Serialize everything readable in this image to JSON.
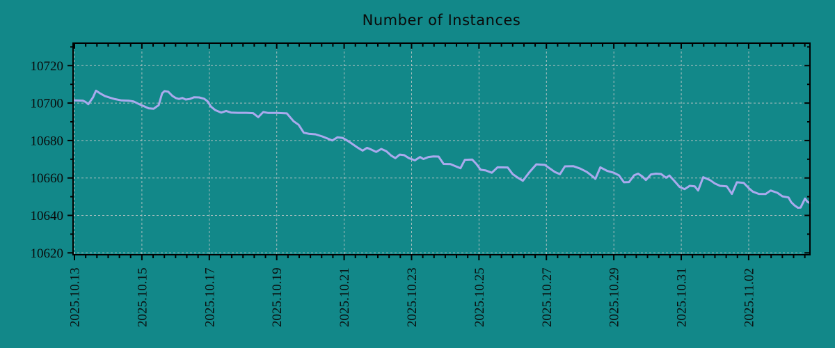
{
  "chart_data": {
    "type": "line",
    "title": "Number of Instances",
    "legend": "none",
    "grid": "dashed",
    "colors": {
      "background": "#128889",
      "line": "#aaaaee",
      "grid": "#c9c9c9",
      "axis": "#000000",
      "text": "#0a0a0a"
    },
    "x_axis": {
      "label": "",
      "tick_labels": [
        "2025.10.13",
        "2025.10.15",
        "2025.10.17",
        "2025.10.19",
        "2025.10.21",
        "2025.10.23",
        "2025.10.25",
        "2025.10.27",
        "2025.10.29",
        "2025.10.31",
        "2025.11.02"
      ],
      "tick_days": [
        0,
        2,
        4,
        6,
        8,
        10,
        12,
        14,
        16,
        18,
        20
      ],
      "minor_tick_interval_days": 0.3333,
      "range_days": [
        0,
        21.82
      ]
    },
    "y_axis": {
      "label": "",
      "tick_labels": [
        "10620",
        "10640",
        "10660",
        "10680",
        "10700",
        "10720"
      ],
      "tick_values": [
        10620,
        10640,
        10660,
        10680,
        10700,
        10720
      ],
      "minor_tick_interval": 10,
      "range": [
        10619,
        10732
      ]
    },
    "series": [
      {
        "name": "instances",
        "color": "#aaaaee",
        "points": [
          [
            0,
            10701.4
          ],
          [
            0.25,
            10701.3
          ],
          [
            0.33,
            10700.6
          ],
          [
            0.41,
            10699.4
          ],
          [
            0.55,
            10703.0
          ],
          [
            0.64,
            10706.6
          ],
          [
            0.75,
            10705.3
          ],
          [
            0.9,
            10703.8
          ],
          [
            1.05,
            10702.9
          ],
          [
            1.2,
            10702.1
          ],
          [
            1.4,
            10701.4
          ],
          [
            1.6,
            10701.3
          ],
          [
            1.75,
            10700.9
          ],
          [
            1.9,
            10699.6
          ],
          [
            2.05,
            10698.4
          ],
          [
            2.2,
            10697.2
          ],
          [
            2.35,
            10697.0
          ],
          [
            2.5,
            10698.9
          ],
          [
            2.6,
            10705.2
          ],
          [
            2.67,
            10706.4
          ],
          [
            2.78,
            10706.1
          ],
          [
            2.9,
            10703.9
          ],
          [
            3.0,
            10702.7
          ],
          [
            3.1,
            10702.2
          ],
          [
            3.2,
            10702.7
          ],
          [
            3.3,
            10701.9
          ],
          [
            3.42,
            10702.2
          ],
          [
            3.55,
            10703.1
          ],
          [
            3.7,
            10703.0
          ],
          [
            3.85,
            10702.3
          ],
          [
            3.95,
            10700.9
          ],
          [
            4.05,
            10698.1
          ],
          [
            4.18,
            10696.2
          ],
          [
            4.35,
            10694.9
          ],
          [
            4.5,
            10695.8
          ],
          [
            4.65,
            10694.9
          ],
          [
            4.85,
            10694.8
          ],
          [
            5.1,
            10694.8
          ],
          [
            5.3,
            10694.6
          ],
          [
            5.45,
            10692.5
          ],
          [
            5.6,
            10695.2
          ],
          [
            5.75,
            10694.7
          ],
          [
            6.0,
            10694.7
          ],
          [
            6.3,
            10694.5
          ],
          [
            6.5,
            10690.3
          ],
          [
            6.65,
            10688.4
          ],
          [
            6.8,
            10684.2
          ],
          [
            6.95,
            10683.6
          ],
          [
            7.15,
            10683.3
          ],
          [
            7.35,
            10682.2
          ],
          [
            7.5,
            10681.1
          ],
          [
            7.65,
            10680.0
          ],
          [
            7.8,
            10681.7
          ],
          [
            7.95,
            10681.4
          ],
          [
            8.1,
            10679.9
          ],
          [
            8.2,
            10678.7
          ],
          [
            8.4,
            10676.2
          ],
          [
            8.55,
            10674.6
          ],
          [
            8.68,
            10676.1
          ],
          [
            8.8,
            10675.2
          ],
          [
            8.95,
            10673.9
          ],
          [
            9.1,
            10675.5
          ],
          [
            9.25,
            10674.3
          ],
          [
            9.4,
            10671.9
          ],
          [
            9.52,
            10670.6
          ],
          [
            9.65,
            10672.5
          ],
          [
            9.78,
            10672.2
          ],
          [
            9.92,
            10670.6
          ],
          [
            10.1,
            10669.4
          ],
          [
            10.25,
            10671.2
          ],
          [
            10.35,
            10670.1
          ],
          [
            10.5,
            10671.2
          ],
          [
            10.65,
            10671.5
          ],
          [
            10.8,
            10671.4
          ],
          [
            10.95,
            10667.5
          ],
          [
            11.15,
            10667.4
          ],
          [
            11.3,
            10666.3
          ],
          [
            11.45,
            10665.2
          ],
          [
            11.58,
            10669.7
          ],
          [
            11.8,
            10669.8
          ],
          [
            11.92,
            10667.5
          ],
          [
            12.05,
            10664.4
          ],
          [
            12.2,
            10664.0
          ],
          [
            12.38,
            10662.8
          ],
          [
            12.55,
            10665.7
          ],
          [
            12.85,
            10665.6
          ],
          [
            13.0,
            10662.0
          ],
          [
            13.15,
            10660.2
          ],
          [
            13.3,
            10658.5
          ],
          [
            13.5,
            10663.2
          ],
          [
            13.7,
            10667.3
          ],
          [
            13.95,
            10667.0
          ],
          [
            14.1,
            10665.1
          ],
          [
            14.25,
            10663.2
          ],
          [
            14.4,
            10662.0
          ],
          [
            14.55,
            10666.2
          ],
          [
            14.8,
            10666.3
          ],
          [
            15.0,
            10665.0
          ],
          [
            15.2,
            10663.2
          ],
          [
            15.38,
            10660.7
          ],
          [
            15.45,
            10659.5
          ],
          [
            15.6,
            10665.7
          ],
          [
            15.8,
            10663.8
          ],
          [
            16.0,
            10662.8
          ],
          [
            16.15,
            10661.4
          ],
          [
            16.3,
            10657.7
          ],
          [
            16.45,
            10657.8
          ],
          [
            16.6,
            10661.4
          ],
          [
            16.72,
            10662.3
          ],
          [
            16.85,
            10660.7
          ],
          [
            16.95,
            10658.9
          ],
          [
            17.1,
            10661.9
          ],
          [
            17.25,
            10662.3
          ],
          [
            17.4,
            10662.1
          ],
          [
            17.55,
            10660.1
          ],
          [
            17.65,
            10661.3
          ],
          [
            17.8,
            10658.3
          ],
          [
            17.95,
            10655.2
          ],
          [
            18.1,
            10654.0
          ],
          [
            18.25,
            10655.8
          ],
          [
            18.4,
            10655.5
          ],
          [
            18.5,
            10653.3
          ],
          [
            18.65,
            10660.4
          ],
          [
            18.85,
            10658.9
          ],
          [
            19.0,
            10657.0
          ],
          [
            19.15,
            10655.8
          ],
          [
            19.35,
            10655.5
          ],
          [
            19.5,
            10651.5
          ],
          [
            19.65,
            10657.7
          ],
          [
            19.85,
            10657.4
          ],
          [
            20.0,
            10654.6
          ],
          [
            20.12,
            10652.7
          ],
          [
            20.3,
            10651.5
          ],
          [
            20.5,
            10651.4
          ],
          [
            20.65,
            10653.3
          ],
          [
            20.85,
            10652.1
          ],
          [
            21.0,
            10650.2
          ],
          [
            21.18,
            10649.6
          ],
          [
            21.26,
            10647.1
          ],
          [
            21.36,
            10645.3
          ],
          [
            21.46,
            10644.1
          ],
          [
            21.54,
            10644.2
          ],
          [
            21.67,
            10649.0
          ],
          [
            21.74,
            10647.3
          ],
          [
            21.81,
            10646.6
          ]
        ]
      }
    ]
  }
}
